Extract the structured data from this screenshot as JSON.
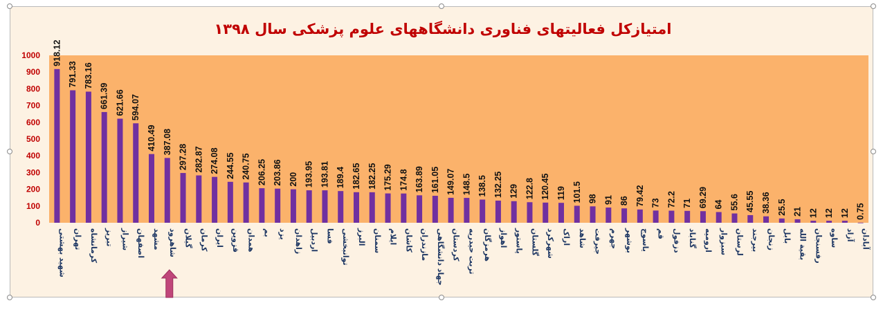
{
  "colors": {
    "plot_bg": "#fbb26b",
    "bar": "#7030a0",
    "title": "#c00000",
    "tick": "#c00000",
    "category": "#1f3864",
    "arrow": "#c0467a"
  },
  "annotation": {
    "arrow_category": "شاهرود",
    "icon": "up-arrow-icon"
  },
  "chart_data": {
    "type": "bar",
    "title": "امتیازکل فعالیتهای فناوری دانشگاههای علوم پزشکی سال ۱۳۹۸",
    "xlabel": "",
    "ylabel": "",
    "ylim": [
      0,
      1000
    ],
    "yticks": [
      0,
      100,
      200,
      300,
      400,
      500,
      600,
      700,
      800,
      900,
      1000
    ],
    "grid": false,
    "categories": [
      "شهید بهشتی",
      "تهران",
      "کرمانشاه",
      "تبریز",
      "شیراز",
      "اصفهان",
      "مشهد",
      "شاهرود",
      "گیلان",
      "کرمان",
      "ایران",
      "قزوین",
      "همدان",
      "بم",
      "یزد",
      "زاهدان",
      "اردبیل",
      "فسا",
      "توانبخشی",
      "البرز",
      "سمنان",
      "ایلام",
      "کاشان",
      "مازندران",
      "جهاد دانشگاهی",
      "کردستان",
      "تربت حیدریه",
      "هرمزگان",
      "اهواز",
      "پاستور",
      "گلستان",
      "شهرکرد",
      "اراک",
      "شاهد",
      "جیرفت",
      "جهرم",
      "بوشهر",
      "یاسوج",
      "قم",
      "دزفول",
      "گناباد",
      "ارومیه",
      "سبزوار",
      "لرستان",
      "بیرجند",
      "زنجان",
      "بابل",
      "بقیة الله",
      "رفسنجان",
      "ساوه",
      "آزاد",
      "آبادان"
    ],
    "values": [
      918.12,
      791.33,
      783.16,
      661.39,
      621.66,
      594.07,
      410.49,
      387.08,
      297.28,
      282.87,
      274.08,
      244.55,
      240.75,
      206.25,
      203.86,
      200,
      193.95,
      193.81,
      189.4,
      182.65,
      182.25,
      175.29,
      174.8,
      163.89,
      161.05,
      149.07,
      148.5,
      138.5,
      132.25,
      129,
      122.8,
      120.45,
      119,
      101.5,
      98,
      91,
      86,
      79.42,
      73,
      72.2,
      71,
      69.29,
      64,
      55.6,
      45.55,
      38.36,
      25.5,
      21,
      12,
      12,
      12,
      0.75
    ]
  }
}
